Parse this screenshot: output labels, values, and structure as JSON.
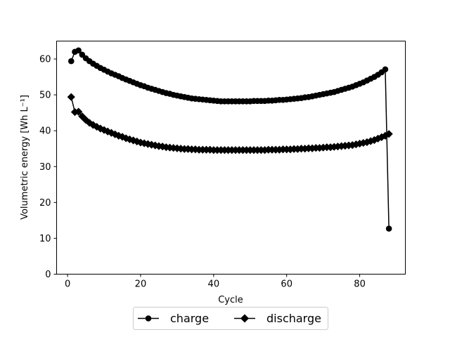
{
  "chart_data": {
    "type": "line",
    "xlabel": "Cycle",
    "ylabel": "Volumetric energy [Wh L⁻¹]",
    "xlim": [
      -3,
      92.5
    ],
    "ylim": [
      0,
      65
    ],
    "xticks": [
      0,
      20,
      40,
      60,
      80
    ],
    "yticks": [
      0,
      10,
      20,
      30,
      40,
      50,
      60
    ],
    "grid": false,
    "legend_position": "bottom-center",
    "series": [
      {
        "name": "charge",
        "color": "#000000",
        "marker": "circle",
        "x": [
          1,
          2,
          3,
          4,
          5,
          6,
          7,
          8,
          9,
          10,
          11,
          12,
          13,
          14,
          15,
          16,
          17,
          18,
          19,
          20,
          21,
          22,
          23,
          24,
          25,
          26,
          27,
          28,
          29,
          30,
          31,
          32,
          33,
          34,
          35,
          36,
          37,
          38,
          39,
          40,
          41,
          42,
          43,
          44,
          45,
          46,
          47,
          48,
          49,
          50,
          51,
          52,
          53,
          54,
          55,
          56,
          57,
          58,
          59,
          60,
          61,
          62,
          63,
          64,
          65,
          66,
          67,
          68,
          69,
          70,
          71,
          72,
          73,
          74,
          75,
          76,
          77,
          78,
          79,
          80,
          81,
          82,
          83,
          84,
          85,
          86,
          87,
          88
        ],
        "values": [
          59.4,
          62.0,
          62.4,
          61.2,
          60.2,
          59.4,
          58.7,
          58.1,
          57.5,
          57.0,
          56.5,
          56.0,
          55.6,
          55.2,
          54.7,
          54.3,
          53.9,
          53.5,
          53.1,
          52.7,
          52.4,
          52.0,
          51.7,
          51.4,
          51.1,
          50.8,
          50.5,
          50.3,
          50.0,
          49.8,
          49.6,
          49.4,
          49.2,
          49.0,
          48.9,
          48.8,
          48.7,
          48.6,
          48.5,
          48.4,
          48.3,
          48.2,
          48.2,
          48.2,
          48.2,
          48.2,
          48.2,
          48.2,
          48.2,
          48.2,
          48.3,
          48.3,
          48.3,
          48.3,
          48.4,
          48.4,
          48.5,
          48.6,
          48.6,
          48.7,
          48.8,
          48.9,
          49.0,
          49.1,
          49.3,
          49.4,
          49.6,
          49.8,
          50.0,
          50.2,
          50.4,
          50.6,
          50.8,
          51.1,
          51.4,
          51.7,
          52.0,
          52.3,
          52.7,
          53.1,
          53.5,
          54.0,
          54.5,
          55.0,
          55.6,
          56.3,
          57.1,
          12.7
        ]
      },
      {
        "name": "discharge",
        "color": "#000000",
        "marker": "diamond",
        "x": [
          1,
          2,
          3,
          4,
          5,
          6,
          7,
          8,
          9,
          10,
          11,
          12,
          13,
          14,
          15,
          16,
          17,
          18,
          19,
          20,
          21,
          22,
          23,
          24,
          25,
          26,
          27,
          28,
          29,
          30,
          31,
          32,
          33,
          34,
          35,
          36,
          37,
          38,
          39,
          40,
          41,
          42,
          43,
          44,
          45,
          46,
          47,
          48,
          49,
          50,
          51,
          52,
          53,
          54,
          55,
          56,
          57,
          58,
          59,
          60,
          61,
          62,
          63,
          64,
          65,
          66,
          67,
          68,
          69,
          70,
          71,
          72,
          73,
          74,
          75,
          76,
          77,
          78,
          79,
          80,
          81,
          82,
          83,
          84,
          85,
          86,
          87,
          88
        ],
        "values": [
          49.4,
          45.2,
          45.3,
          44.0,
          43.0,
          42.2,
          41.6,
          41.1,
          40.6,
          40.2,
          39.8,
          39.4,
          39.0,
          38.6,
          38.3,
          37.9,
          37.6,
          37.3,
          37.0,
          36.7,
          36.5,
          36.3,
          36.1,
          35.9,
          35.7,
          35.6,
          35.4,
          35.3,
          35.2,
          35.1,
          35.0,
          34.9,
          34.9,
          34.8,
          34.8,
          34.7,
          34.7,
          34.7,
          34.7,
          34.6,
          34.6,
          34.6,
          34.6,
          34.6,
          34.6,
          34.6,
          34.6,
          34.6,
          34.6,
          34.6,
          34.6,
          34.6,
          34.6,
          34.6,
          34.7,
          34.7,
          34.7,
          34.7,
          34.8,
          34.8,
          34.8,
          34.9,
          34.9,
          35.0,
          35.0,
          35.1,
          35.1,
          35.2,
          35.2,
          35.3,
          35.4,
          35.4,
          35.5,
          35.6,
          35.7,
          35.8,
          35.9,
          36.0,
          36.2,
          36.4,
          36.6,
          36.8,
          37.1,
          37.4,
          37.8,
          38.2,
          38.6,
          39.1
        ]
      }
    ]
  }
}
